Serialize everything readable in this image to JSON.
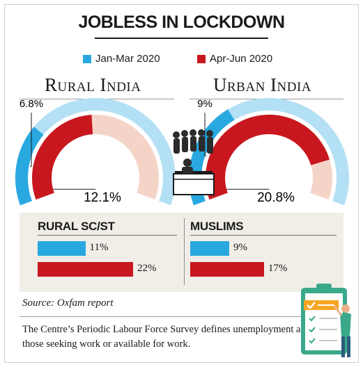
{
  "title": "JOBLESS IN LOCKDOWN",
  "legend": [
    {
      "label": "Jan-Mar 2020",
      "color": "#29a8e0"
    },
    {
      "label": "Apr-Jun 2020",
      "color": "#c8171e"
    }
  ],
  "chart_data": [
    {
      "type": "gauge",
      "title": "Rural India",
      "series": [
        {
          "name": "Jan-Mar 2020",
          "value": 6.8,
          "label": "6.8%"
        },
        {
          "name": "Apr-Jun 2020",
          "value": 12.1,
          "label": "12.1%"
        }
      ]
    },
    {
      "type": "gauge",
      "title": "Urban India",
      "series": [
        {
          "name": "Jan-Mar 2020",
          "value": 9,
          "label": "9%"
        },
        {
          "name": "Apr-Jun 2020",
          "value": 20.8,
          "label": "20.8%"
        }
      ]
    },
    {
      "type": "bar",
      "title": "RURAL SC/ST",
      "series": [
        {
          "name": "Jan-Mar 2020",
          "value": 11,
          "label": "11%"
        },
        {
          "name": "Apr-Jun 2020",
          "value": 22,
          "label": "22%"
        }
      ]
    },
    {
      "type": "bar",
      "title": "MUSLIMS",
      "series": [
        {
          "name": "Jan-Mar 2020",
          "value": 9,
          "label": "9%"
        },
        {
          "name": "Apr-Jun 2020",
          "value": 17,
          "label": "17%"
        }
      ]
    }
  ],
  "source": "Source: Oxfam report",
  "footnote": "The Centre’s Periodic Labour Force Survey defines unemployment as those seeking work or available for work.",
  "colors": {
    "jan_mar": "#29a8e0",
    "jan_mar_track": "#b3e0f4",
    "apr_jun": "#c8171e",
    "apr_jun_track": "#f5d4c8",
    "panel": "#f0eee7"
  },
  "icons": [
    "job-queue-illustration-icon",
    "clipboard-checklist-illustration-icon"
  ]
}
